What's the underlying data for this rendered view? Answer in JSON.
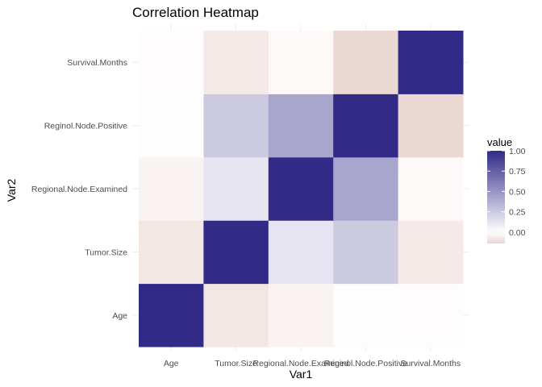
{
  "chart_data": {
    "type": "heatmap",
    "title": "Correlation Heatmap",
    "xlabel": "Var1",
    "ylabel": "Var2",
    "x": [
      "Age",
      "Tumor.Size",
      "Regional.Node.Examined",
      "Reginol.Node.Positive",
      "Survival.Months"
    ],
    "y": [
      "Age",
      "Tumor.Size",
      "Regional.Node.Examined",
      "Reginol.Node.Positive",
      "Survival.Months"
    ],
    "values": [
      [
        1.0,
        -0.08,
        -0.04,
        0.01,
        -0.01
      ],
      [
        -0.08,
        1.0,
        0.12,
        0.25,
        -0.07
      ],
      [
        -0.04,
        0.12,
        1.0,
        0.42,
        -0.02
      ],
      [
        0.01,
        0.25,
        0.42,
        1.0,
        -0.13
      ],
      [
        -0.01,
        -0.07,
        -0.02,
        -0.13,
        1.0
      ]
    ],
    "legend": {
      "title": "value",
      "position": "right",
      "ticks": [
        "1.00",
        "0.75",
        "0.50",
        "0.25",
        "0.00"
      ],
      "tick_values": [
        1.0,
        0.75,
        0.5,
        0.25,
        0.0
      ],
      "range": [
        -0.14,
        1.0
      ]
    },
    "colors": {
      "low": "#ead5d0",
      "mid": "#ffffff",
      "high": "#312a87"
    },
    "grid": true
  }
}
